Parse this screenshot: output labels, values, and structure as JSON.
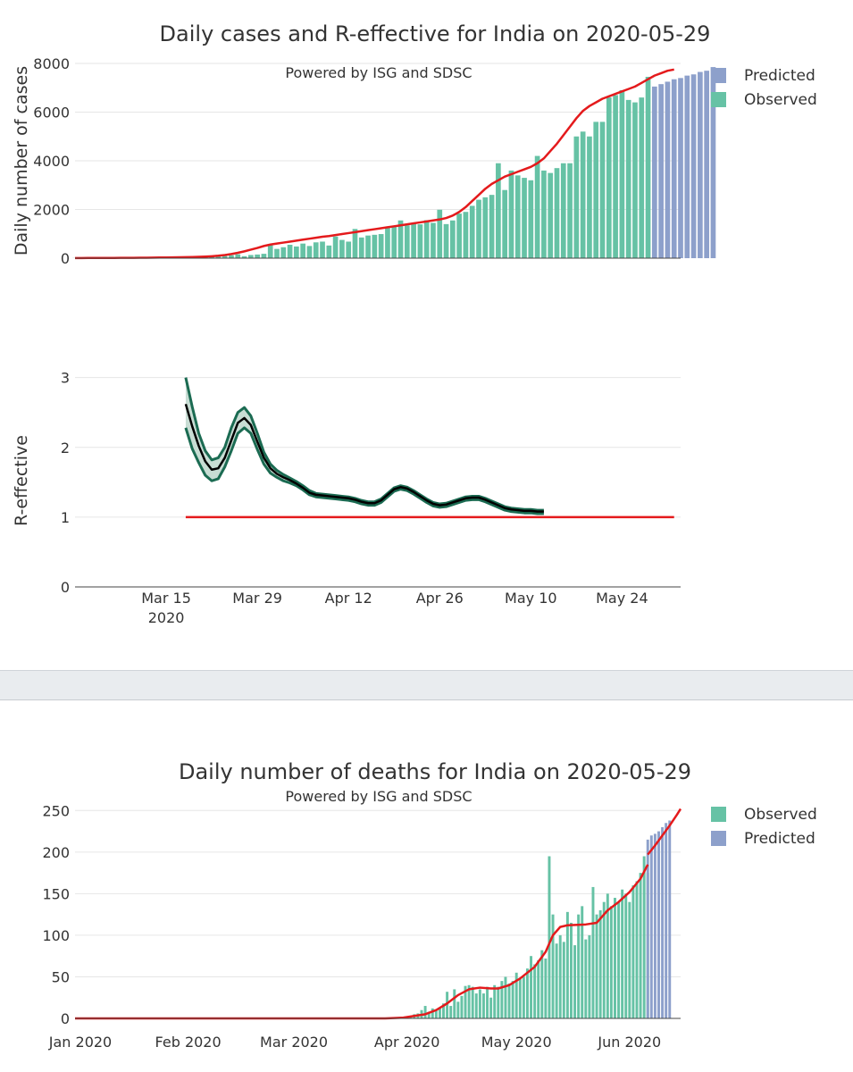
{
  "colors": {
    "observed": "#66c2a5",
    "predicted": "#8da0cb",
    "trend": "#e41a1c",
    "band_fill": "#c8ddd4",
    "band_line": "#1b6b52",
    "r_line": "#000000"
  },
  "cases_panel": {
    "title": "Daily cases and R-effective for India on 2020-05-29",
    "subtitle": "Powered by ISG and SDSC",
    "legend": [
      "Predicted",
      "Observed"
    ]
  },
  "deaths_panel": {
    "title": "Daily number of deaths for India on 2020-05-29",
    "subtitle": "Powered by ISG and SDSC",
    "legend": [
      "Observed",
      "Predicted"
    ]
  },
  "chart_data": [
    {
      "type": "bar",
      "title": "Daily cases and R-effective for India on 2020-05-29",
      "ylabel": "Daily number of cases",
      "ylim": [
        0,
        8000
      ],
      "yticks": [
        0,
        2000,
        4000,
        6000,
        8000
      ],
      "x_start_date": "2020-03-01",
      "series": [
        {
          "name": "Observed",
          "start_day": 0,
          "values": [
            5,
            0,
            25,
            2,
            3,
            5,
            3,
            8,
            10,
            15,
            10,
            12,
            20,
            10,
            12,
            25,
            20,
            25,
            50,
            80,
            60,
            75,
            80,
            90,
            120,
            160,
            80,
            130,
            150,
            180,
            530,
            380,
            450,
            550,
            480,
            600,
            500,
            650,
            680,
            520,
            890,
            750,
            680,
            1200,
            850,
            930,
            960,
            990,
            1300,
            1300,
            1550,
            1350,
            1440,
            1390,
            1560,
            1450,
            1990,
            1400,
            1550,
            1830,
            1900,
            2150,
            2400,
            2500,
            2600,
            3900,
            2800,
            3600,
            3400,
            3300,
            3200,
            4200,
            3600,
            3500,
            3700,
            3900,
            3900,
            5000,
            5200,
            5000,
            5600,
            5600,
            6600,
            6700,
            6900,
            6500,
            6400,
            6600,
            7450
          ]
        },
        {
          "name": "Predicted",
          "start_day": 89,
          "values": [
            7050,
            7150,
            7250,
            7350,
            7400,
            7500,
            7550,
            7650,
            7700,
            7850
          ]
        },
        {
          "name": "Trend",
          "type": "line",
          "start_day": 0,
          "values": [
            5,
            6,
            7,
            8,
            9,
            10,
            11,
            12,
            14,
            16,
            18,
            20,
            23,
            26,
            29,
            33,
            37,
            42,
            48,
            55,
            65,
            80,
            100,
            130,
            170,
            220,
            280,
            350,
            420,
            500,
            560,
            600,
            640,
            680,
            720,
            760,
            800,
            840,
            880,
            910,
            950,
            990,
            1030,
            1070,
            1110,
            1150,
            1190,
            1230,
            1270,
            1310,
            1350,
            1390,
            1430,
            1470,
            1510,
            1550,
            1590,
            1650,
            1750,
            1900,
            2100,
            2350,
            2600,
            2850,
            3050,
            3200,
            3350,
            3450,
            3550,
            3650,
            3750,
            3900,
            4100,
            4400,
            4700,
            5050,
            5400,
            5750,
            6050,
            6250,
            6400,
            6550,
            6650,
            6750,
            6850,
            6950,
            7050,
            7200,
            7350,
            7500,
            7600,
            7700,
            7750
          ]
        }
      ]
    },
    {
      "type": "line",
      "ylabel": "R-effective",
      "ylim": [
        0,
        3.2
      ],
      "yticks": [
        0,
        1,
        2,
        3
      ],
      "x_start_date": "2020-03-01",
      "xticks": [
        {
          "day": 14,
          "label": "Mar 15",
          "label2": "2020"
        },
        {
          "day": 28,
          "label": "Mar 29"
        },
        {
          "day": 42,
          "label": "Apr 12"
        },
        {
          "day": 56,
          "label": "Apr 26"
        },
        {
          "day": 70,
          "label": "May 10"
        },
        {
          "day": 84,
          "label": "May 24"
        }
      ],
      "x_range_days": [
        0,
        93
      ],
      "threshold": {
        "value": 1,
        "start_day": 17,
        "end_day": 92
      },
      "series": [
        {
          "name": "R",
          "start_day": 17,
          "values": [
            2.62,
            2.3,
            2.02,
            1.8,
            1.68,
            1.7,
            1.85,
            2.1,
            2.35,
            2.42,
            2.32,
            2.08,
            1.85,
            1.7,
            1.62,
            1.57,
            1.53,
            1.48,
            1.42,
            1.35,
            1.32,
            1.31,
            1.3,
            1.29,
            1.28,
            1.27,
            1.25,
            1.22,
            1.2,
            1.2,
            1.24,
            1.32,
            1.4,
            1.43,
            1.41,
            1.36,
            1.3,
            1.24,
            1.19,
            1.17,
            1.18,
            1.21,
            1.24,
            1.27,
            1.28,
            1.28,
            1.25,
            1.21,
            1.17,
            1.13,
            1.11,
            1.1,
            1.09,
            1.09,
            1.08,
            1.08
          ],
          "upper": [
            3.0,
            2.58,
            2.2,
            1.95,
            1.82,
            1.85,
            2.0,
            2.28,
            2.5,
            2.57,
            2.45,
            2.2,
            1.93,
            1.76,
            1.67,
            1.61,
            1.56,
            1.51,
            1.45,
            1.38,
            1.34,
            1.33,
            1.32,
            1.31,
            1.3,
            1.29,
            1.27,
            1.24,
            1.22,
            1.22,
            1.26,
            1.34,
            1.42,
            1.45,
            1.43,
            1.38,
            1.32,
            1.26,
            1.21,
            1.19,
            1.2,
            1.23,
            1.26,
            1.29,
            1.3,
            1.3,
            1.27,
            1.23,
            1.19,
            1.15,
            1.13,
            1.12,
            1.11,
            1.11,
            1.1,
            1.1
          ],
          "lower": [
            2.28,
            1.98,
            1.78,
            1.6,
            1.52,
            1.55,
            1.72,
            1.95,
            2.2,
            2.28,
            2.2,
            1.97,
            1.76,
            1.63,
            1.57,
            1.52,
            1.49,
            1.45,
            1.39,
            1.32,
            1.29,
            1.28,
            1.27,
            1.26,
            1.25,
            1.24,
            1.22,
            1.19,
            1.17,
            1.17,
            1.21,
            1.29,
            1.37,
            1.4,
            1.38,
            1.33,
            1.27,
            1.21,
            1.16,
            1.14,
            1.15,
            1.18,
            1.21,
            1.24,
            1.25,
            1.25,
            1.22,
            1.18,
            1.14,
            1.1,
            1.08,
            1.07,
            1.06,
            1.06,
            1.05,
            1.05
          ]
        }
      ]
    },
    {
      "type": "bar",
      "title": "Daily number of deaths for India on 2020-05-29",
      "ylim": [
        0,
        260
      ],
      "yticks": [
        0,
        50,
        100,
        150,
        200,
        250
      ],
      "x_start_date": "2020-01-01",
      "x_range_days": [
        0,
        166
      ],
      "xticks": [
        {
          "day": 0,
          "label": "Jan 2020"
        },
        {
          "day": 31,
          "label": "Feb 2020"
        },
        {
          "day": 60,
          "label": "Mar 2020"
        },
        {
          "day": 91,
          "label": "Apr 2020"
        },
        {
          "day": 121,
          "label": "May 2020"
        },
        {
          "day": 152,
          "label": "Jun 2020"
        }
      ],
      "series": [
        {
          "name": "Observed",
          "start_day": 90,
          "values": [
            2,
            2,
            3,
            5,
            6,
            10,
            15,
            8,
            12,
            10,
            12,
            18,
            32,
            15,
            35,
            20,
            27,
            39,
            40,
            38,
            30,
            35,
            30,
            38,
            25,
            40,
            38,
            45,
            50,
            42,
            45,
            55,
            48,
            50,
            60,
            75,
            65,
            70,
            82,
            72,
            195,
            125,
            90,
            100,
            92,
            128,
            115,
            88,
            125,
            135,
            95,
            100,
            158,
            125,
            130,
            140,
            150,
            135,
            145,
            140,
            155,
            150,
            140,
            160,
            165,
            175,
            195,
            175
          ]
        },
        {
          "name": "Predicted",
          "start_day": 157,
          "values": [
            215,
            220,
            222,
            225,
            230,
            235,
            238
          ]
        },
        {
          "name": "Trend",
          "type": "line",
          "start_day": 0,
          "points": [
            [
              0,
              0
            ],
            [
              85,
              0
            ],
            [
              88,
              0.5
            ],
            [
              90,
              1
            ],
            [
              93,
              3
            ],
            [
              96,
              5
            ],
            [
              99,
              10
            ],
            [
              102,
              18
            ],
            [
              105,
              28
            ],
            [
              108,
              35
            ],
            [
              111,
              37
            ],
            [
              114,
              36
            ],
            [
              116,
              36
            ],
            [
              119,
              40
            ],
            [
              122,
              48
            ],
            [
              126,
              62
            ],
            [
              129,
              80
            ],
            [
              131,
              100
            ],
            [
              133,
              110
            ],
            [
              135,
              112
            ],
            [
              140,
              113
            ],
            [
              143,
              115
            ],
            [
              146,
              130
            ],
            [
              149,
              140
            ],
            [
              152,
              152
            ],
            [
              155,
              168
            ],
            [
              157,
              185
            ]
          ]
        },
        {
          "name": "Trend predicted",
          "type": "line",
          "points": [
            [
              157,
              197
            ],
            [
              159,
              208
            ],
            [
              161,
              220
            ],
            [
              163,
              232
            ],
            [
              165,
              245
            ],
            [
              166,
              252
            ]
          ]
        }
      ]
    }
  ]
}
